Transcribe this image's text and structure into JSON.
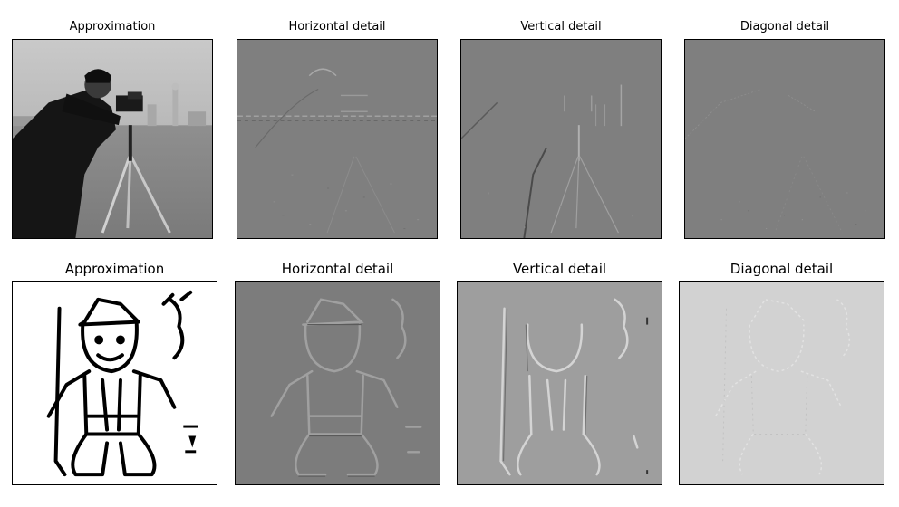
{
  "figure": {
    "top_row": {
      "image": "cameraman",
      "panels": [
        {
          "title": "Approximation",
          "background": "#8a8a8a"
        },
        {
          "title": "Horizontal detail",
          "background": "#7f7f7f"
        },
        {
          "title": "Vertical detail",
          "background": "#7f7f7f"
        },
        {
          "title": "Diagonal detail",
          "background": "#7f7f7f"
        }
      ]
    },
    "bottom_row": {
      "image": "line-drawing-figure-with-rifle",
      "panels": [
        {
          "title": "Approximation",
          "background": "#ffffff"
        },
        {
          "title": "Horizontal detail",
          "background": "#7c7c7c"
        },
        {
          "title": "Vertical detail",
          "background": "#9e9e9e"
        },
        {
          "title": "Diagonal detail",
          "background": "#d2d2d2"
        }
      ]
    }
  }
}
